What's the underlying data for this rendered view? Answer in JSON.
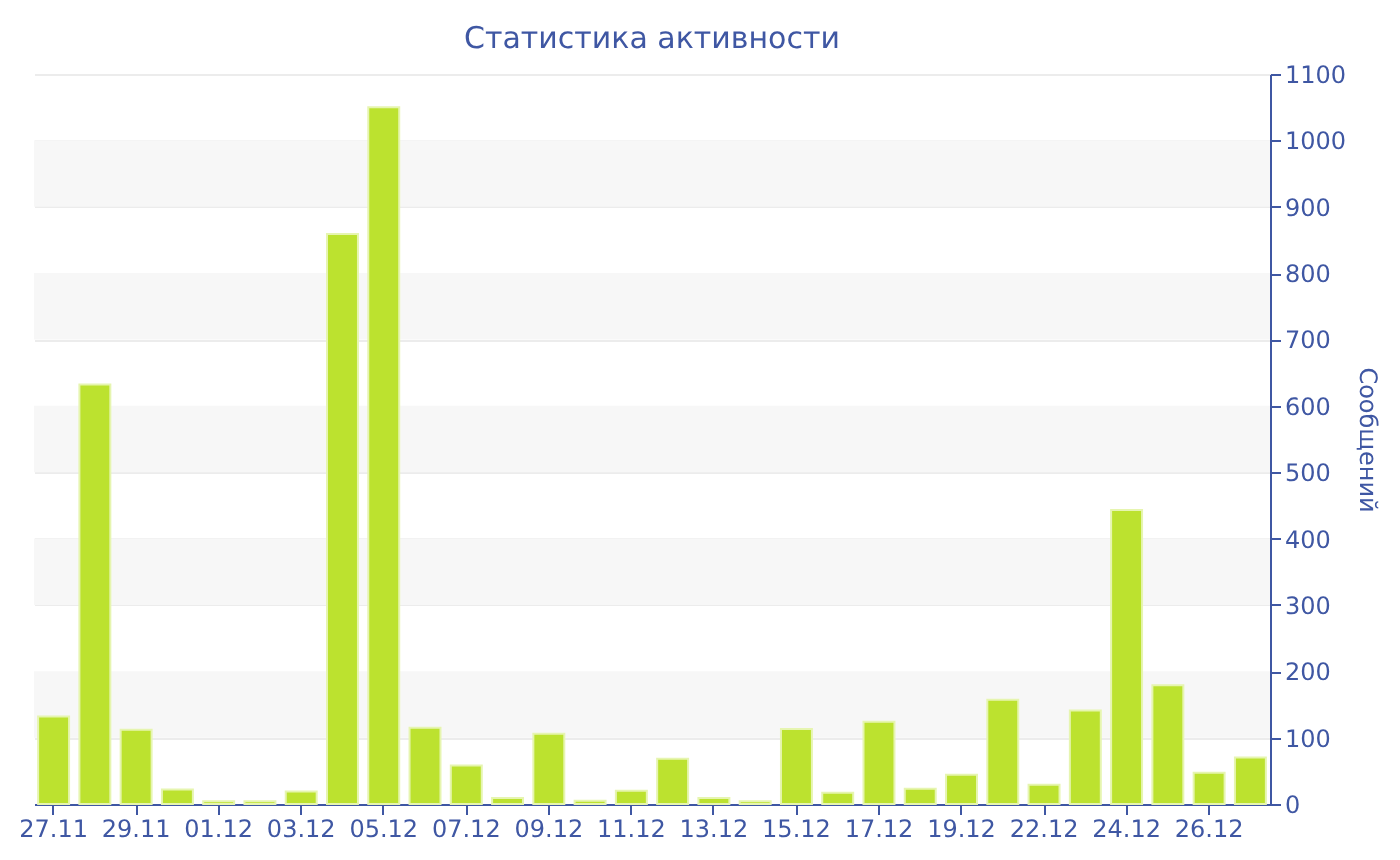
{
  "chart_data": {
    "type": "bar",
    "title": "Статистика активности",
    "ylabel": "Сообщений",
    "categories": [
      "27.11",
      null,
      "29.11",
      null,
      "01.12",
      null,
      "03.12",
      null,
      "05.12",
      null,
      "07.12",
      null,
      "09.12",
      null,
      "11.12",
      null,
      "13.12",
      null,
      "15.12",
      null,
      "17.12",
      null,
      "19.12",
      null,
      "22.12",
      null,
      "24.12",
      null,
      "26.12",
      null
    ],
    "values": [
      132,
      632,
      112,
      22,
      4,
      4,
      19,
      859,
      1050,
      115,
      58,
      9,
      106,
      5,
      20,
      68,
      9,
      4,
      113,
      17,
      124,
      23,
      44,
      157,
      29,
      141,
      443,
      179,
      47,
      70
    ],
    "color": "#bce22f",
    "ylim": [
      0,
      1100
    ],
    "yticks": [
      0,
      100,
      200,
      300,
      400,
      500,
      600,
      700,
      800,
      900,
      1000,
      1100
    ],
    "grid": "y"
  }
}
